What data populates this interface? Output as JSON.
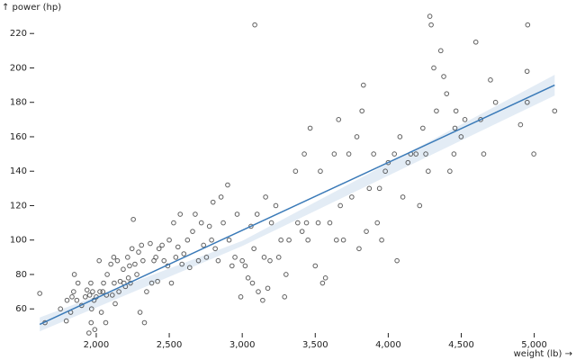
{
  "chart_data": {
    "type": "scatter",
    "x_label": "weight (lb) →",
    "y_label": "↑ power (hp)",
    "xlim": [
      1575,
      5175
    ],
    "ylim": [
      46,
      229
    ],
    "xticks": [
      {
        "value": 2000,
        "label": "2,000"
      },
      {
        "value": 2500,
        "label": "2,500"
      },
      {
        "value": 3000,
        "label": "3,000"
      },
      {
        "value": 3500,
        "label": "3,500"
      },
      {
        "value": 4000,
        "label": "4,000"
      },
      {
        "value": 4500,
        "label": "4,500"
      },
      {
        "value": 5000,
        "label": "5,000"
      }
    ],
    "yticks": [
      60,
      80,
      100,
      120,
      140,
      160,
      180,
      200,
      220
    ],
    "color": "#444444",
    "trend_color": "#3a7ab8",
    "band_color": "#dce7f2",
    "x": [
      1649,
      1613,
      1755,
      1795,
      1800,
      1825,
      1834,
      1845,
      1850,
      1867,
      1875,
      1900,
      1925,
      1937,
      1950,
      1955,
      1963,
      1965,
      1968,
      1975,
      1985,
      1990,
      2000,
      2020,
      2025,
      2035,
      2045,
      2050,
      2065,
      2070,
      2075,
      2100,
      2110,
      2120,
      2123,
      2130,
      2145,
      2155,
      2164,
      2185,
      2190,
      2200,
      2215,
      2220,
      2228,
      2234,
      2245,
      2254,
      2265,
      2278,
      2290,
      2300,
      2310,
      2320,
      2330,
      2345,
      2370,
      2380,
      2395,
      2408,
      2420,
      2430,
      2451,
      2464,
      2490,
      2500,
      2515,
      2530,
      2545,
      2560,
      2575,
      2587,
      2600,
      2625,
      2640,
      2660,
      2678,
      2700,
      2720,
      2735,
      2755,
      2775,
      2790,
      2800,
      2815,
      2835,
      2855,
      2870,
      2900,
      2910,
      2930,
      2950,
      2965,
      2990,
      3000,
      3020,
      3040,
      3060,
      3070,
      3080,
      3102,
      3110,
      3140,
      3150,
      3160,
      3175,
      3190,
      3200,
      3230,
      3250,
      3265,
      3290,
      3300,
      3320,
      3365,
      3380,
      3410,
      3425,
      3440,
      3450,
      3465,
      3500,
      3520,
      3535,
      3550,
      3570,
      3600,
      3630,
      3645,
      3660,
      3672,
      3693,
      3730,
      3750,
      3785,
      3800,
      3820,
      3830,
      3850,
      3870,
      3900,
      3925,
      3940,
      3955,
      3980,
      4000,
      4042,
      4060,
      4080,
      4100,
      4135,
      4154,
      4190,
      4215,
      4237,
      4257,
      4274,
      4294,
      4312,
      4330,
      4360,
      4380,
      4400,
      4422,
      4450,
      4457,
      4464,
      4499,
      4525,
      4600,
      4633,
      4654,
      4700,
      4735,
      4906,
      4951,
      4952,
      4997,
      3086,
      5140,
      4955,
      4285
    ],
    "y": [
      52,
      69,
      60,
      53,
      65,
      58,
      67,
      70,
      80,
      65,
      75,
      62,
      67,
      71,
      46,
      68,
      75,
      52,
      60,
      70,
      65,
      48,
      67,
      88,
      70,
      58,
      70,
      75,
      52,
      68,
      80,
      86,
      68,
      90,
      75,
      63,
      88,
      70,
      76,
      83,
      75,
      73,
      90,
      78,
      85,
      75,
      95,
      112,
      86,
      80,
      93,
      58,
      97,
      88,
      52,
      70,
      98,
      75,
      88,
      90,
      76,
      95,
      97,
      88,
      85,
      100,
      75,
      110,
      90,
      96,
      115,
      86,
      92,
      100,
      84,
      105,
      115,
      88,
      110,
      97,
      90,
      108,
      100,
      122,
      95,
      88,
      125,
      110,
      132,
      100,
      85,
      90,
      115,
      67,
      88,
      85,
      78,
      108,
      75,
      95,
      115,
      70,
      65,
      90,
      125,
      72,
      88,
      110,
      120,
      90,
      100,
      67,
      80,
      100,
      140,
      110,
      105,
      150,
      110,
      100,
      165,
      85,
      110,
      140,
      75,
      78,
      110,
      150,
      100,
      170,
      120,
      100,
      150,
      125,
      160,
      95,
      175,
      190,
      105,
      130,
      150,
      110,
      130,
      100,
      140,
      145,
      150,
      88,
      160,
      125,
      145,
      150,
      150,
      120,
      165,
      150,
      140,
      225,
      200,
      175,
      210,
      195,
      185,
      140,
      150,
      165,
      175,
      160,
      170,
      215,
      170,
      150,
      193,
      180,
      167,
      198,
      180,
      150,
      225,
      175,
      225,
      230
    ],
    "trend": {
      "x": [
        1613,
        5140
      ],
      "y": [
        51,
        190
      ]
    },
    "band": {
      "x": [
        1613,
        3000,
        5140
      ],
      "lower": [
        47,
        96.5,
        184
      ],
      "upper": [
        55,
        99.5,
        196
      ]
    }
  }
}
